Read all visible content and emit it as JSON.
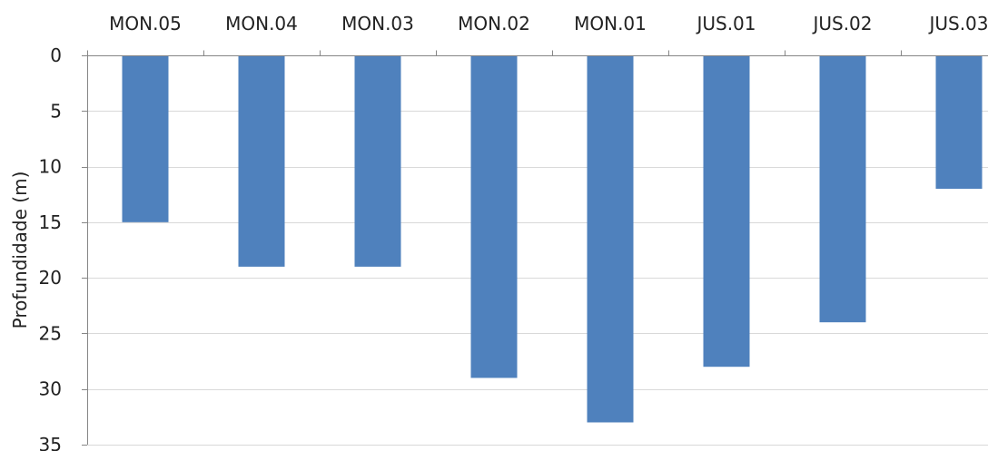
{
  "chart_data": {
    "type": "bar",
    "orientation": "inverted-y",
    "x_axis_position": "top",
    "categories": [
      "MON.05",
      "MON.04",
      "MON.03",
      "MON.02",
      "MON.01",
      "JUS.01",
      "JUS.02",
      "JUS.03"
    ],
    "values": [
      15,
      19,
      19,
      29,
      33,
      28,
      24,
      12
    ],
    "title": "",
    "xlabel": "",
    "ylabel": "Profundidade (m)",
    "ylim": [
      0,
      35
    ],
    "yticks": [
      "0",
      "5",
      "10",
      "15",
      "20",
      "25",
      "30",
      "35"
    ],
    "ytick_values": [
      0,
      5,
      10,
      15,
      20,
      25,
      30,
      35
    ],
    "grid": true,
    "legend": "none",
    "colors": {
      "bar": "#4F81BD",
      "grid": "#D9D9D9",
      "axis": "#868686",
      "text": "#222222"
    }
  }
}
